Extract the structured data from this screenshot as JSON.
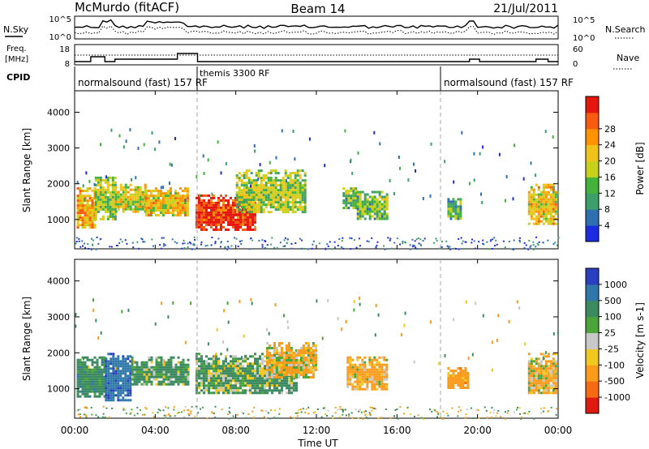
{
  "header": {
    "station": "McMurdo (fitACF)",
    "beam": "Beam 14",
    "date": "21/Jul/2011"
  },
  "top_panels": {
    "nsky_label": "N.Sky",
    "nsearch_label": "N.Search",
    "freq_label": "Freq.",
    "freq_unit": "[MHz]",
    "nave_label": "Nave",
    "cpid_label": "CPID",
    "noise_ticks": [
      "10^5",
      "10^0"
    ],
    "noise_ticks_right": [
      "10^5",
      "10^0"
    ],
    "freq_ticks": [
      "18",
      "8"
    ],
    "nave_ticks": [
      "60",
      "0"
    ]
  },
  "cpid_segments": [
    {
      "label": "normalsound (fast) 157 RF",
      "start": 0,
      "end": 6
    },
    {
      "label": "themis 3300 RF",
      "start": 6,
      "end": 18
    },
    {
      "label": "normalsound (fast) 157 RF",
      "start": 18,
      "end": 24
    }
  ],
  "x_axis": {
    "label": "Time UT",
    "ticks": [
      "00:00",
      "04:00",
      "08:00",
      "12:00",
      "16:00",
      "20:00",
      "00:00"
    ]
  },
  "y_axis": {
    "label": "Slant Range [km]",
    "ticks": [
      "1000",
      "2000",
      "3000",
      "4000"
    ]
  },
  "power_scale": {
    "label": "Power [dB]",
    "ticks": [
      "4",
      "8",
      "12",
      "16",
      "20",
      "24",
      "28"
    ],
    "colors": [
      "#1c2be0",
      "#2e6fb0",
      "#3d9e6a",
      "#44b23b",
      "#c8d11a",
      "#f0c319",
      "#ff9200",
      "#f85a10",
      "#e5160d"
    ]
  },
  "velocity_scale": {
    "label": "Velocity [m s-1]",
    "ticks": [
      "1000",
      "500",
      "100",
      "25",
      "-25",
      "-100",
      "-500",
      "-1000"
    ],
    "colors": [
      "#2a3fbf",
      "#2e77a8",
      "#3c8b60",
      "#4ba53a",
      "#c8c8c8",
      "#f1c820",
      "#fa9b1c",
      "#f56a12",
      "#e01a10"
    ]
  },
  "chart_data": [
    {
      "type": "heatmap",
      "title": "Power",
      "xlabel": "Time UT",
      "ylabel": "Slant Range [km]",
      "xlim": [
        0,
        24
      ],
      "ylim": [
        180,
        4600
      ],
      "colorbar": "Power [dB]",
      "colorbar_range": [
        0,
        30
      ],
      "echo_regions": [
        {
          "t_start": 0.1,
          "t_end": 1.0,
          "range_start": 800,
          "range_end": 1900,
          "level": 20
        },
        {
          "t_start": 1.0,
          "t_end": 2.0,
          "range_start": 1000,
          "range_end": 2200,
          "level": 14
        },
        {
          "t_start": 2.0,
          "t_end": 3.5,
          "range_start": 1200,
          "range_end": 2000,
          "level": 16
        },
        {
          "t_start": 3.5,
          "t_end": 5.6,
          "range_start": 1100,
          "range_end": 1900,
          "level": 18
        },
        {
          "t_start": 6.0,
          "t_end": 9.0,
          "range_start": 700,
          "range_end": 1700,
          "level": 28
        },
        {
          "t_start": 8.0,
          "t_end": 11.5,
          "range_start": 1200,
          "range_end": 2400,
          "level": 14
        },
        {
          "t_start": 13.3,
          "t_end": 14.0,
          "range_start": 1300,
          "range_end": 1900,
          "level": 12
        },
        {
          "t_start": 14.0,
          "t_end": 15.5,
          "range_start": 1000,
          "range_end": 1800,
          "level": 12
        },
        {
          "t_start": 18.5,
          "t_end": 19.2,
          "range_start": 1000,
          "range_end": 1600,
          "level": 10
        },
        {
          "t_start": 22.5,
          "t_end": 23.9,
          "range_start": 900,
          "range_end": 2000,
          "level": 18
        }
      ]
    },
    {
      "type": "heatmap",
      "title": "Velocity",
      "xlabel": "Time UT",
      "ylabel": "Slant Range [km]",
      "xlim": [
        0,
        24
      ],
      "ylim": [
        180,
        4600
      ],
      "colorbar": "Velocity [m s-1]",
      "colorbar_range": [
        -1000,
        1000
      ],
      "echo_regions": [
        {
          "t_start": 0.1,
          "t_end": 1.5,
          "range_start": 800,
          "range_end": 1900,
          "level": 300
        },
        {
          "t_start": 1.5,
          "t_end": 2.8,
          "range_start": 700,
          "range_end": 2000,
          "level": 800
        },
        {
          "t_start": 2.8,
          "t_end": 5.6,
          "range_start": 1100,
          "range_end": 1900,
          "level": 200
        },
        {
          "t_start": 6.0,
          "t_end": 11.0,
          "range_start": 900,
          "range_end": 2000,
          "level": 150
        },
        {
          "t_start": 9.5,
          "t_end": 12.0,
          "range_start": 1300,
          "range_end": 2300,
          "level": -150
        },
        {
          "t_start": 13.5,
          "t_end": 15.5,
          "range_start": 1000,
          "range_end": 1900,
          "level": -200
        },
        {
          "t_start": 18.5,
          "t_end": 19.5,
          "range_start": 1000,
          "range_end": 1600,
          "level": -300
        },
        {
          "t_start": 22.5,
          "t_end": 23.9,
          "range_start": 900,
          "range_end": 2000,
          "level": -150
        }
      ]
    }
  ]
}
